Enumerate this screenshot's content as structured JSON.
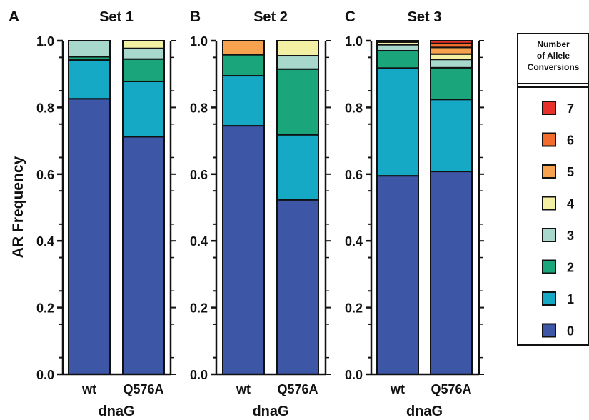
{
  "ylabel": "AR Frequency",
  "chart_data": [
    {
      "type": "bar",
      "stacked": true,
      "panel": "A",
      "title": "Set 1",
      "xlabel": "dnaG",
      "categories": [
        "wt",
        "Q576A"
      ],
      "ylim": [
        0,
        1.0
      ],
      "yticks": [
        "0.0",
        "0.2",
        "0.4",
        "0.6",
        "0.8",
        "1.0"
      ],
      "series": [
        {
          "name": "0",
          "values": [
            0.826,
            0.712
          ]
        },
        {
          "name": "1",
          "values": [
            0.116,
            0.166
          ]
        },
        {
          "name": "2",
          "values": [
            0.01,
            0.067
          ]
        },
        {
          "name": "3",
          "values": [
            0.048,
            0.032
          ]
        },
        {
          "name": "4",
          "values": [
            0.0,
            0.023
          ]
        },
        {
          "name": "5",
          "values": [
            0.0,
            0.0
          ]
        },
        {
          "name": "6",
          "values": [
            0.0,
            0.0
          ]
        },
        {
          "name": "7",
          "values": [
            0.0,
            0.0
          ]
        }
      ]
    },
    {
      "type": "bar",
      "stacked": true,
      "panel": "B",
      "title": "Set 2",
      "xlabel": "dnaG",
      "categories": [
        "wt",
        "Q576A"
      ],
      "ylim": [
        0,
        1.0
      ],
      "yticks": [
        "0.0",
        "0.2",
        "0.4",
        "0.6",
        "0.8",
        "1.0"
      ],
      "series": [
        {
          "name": "0",
          "values": [
            0.745,
            0.523
          ]
        },
        {
          "name": "1",
          "values": [
            0.15,
            0.195
          ]
        },
        {
          "name": "2",
          "values": [
            0.063,
            0.197
          ]
        },
        {
          "name": "3",
          "values": [
            0.0,
            0.04
          ]
        },
        {
          "name": "4",
          "values": [
            0.0,
            0.045
          ]
        },
        {
          "name": "5",
          "values": [
            0.042,
            0.0
          ]
        },
        {
          "name": "6",
          "values": [
            0.0,
            0.0
          ]
        },
        {
          "name": "7",
          "values": [
            0.0,
            0.0
          ]
        }
      ]
    },
    {
      "type": "bar",
      "stacked": true,
      "panel": "C",
      "title": "Set 3",
      "xlabel": "dnaG",
      "categories": [
        "wt",
        "Q576A"
      ],
      "ylim": [
        0,
        1.0
      ],
      "yticks": [
        "0.0",
        "0.2",
        "0.4",
        "0.6",
        "0.8",
        "1.0"
      ],
      "series": [
        {
          "name": "0",
          "values": [
            0.595,
            0.608
          ]
        },
        {
          "name": "1",
          "values": [
            0.323,
            0.216
          ]
        },
        {
          "name": "2",
          "values": [
            0.052,
            0.095
          ]
        },
        {
          "name": "3",
          "values": [
            0.018,
            0.025
          ]
        },
        {
          "name": "4",
          "values": [
            0.008,
            0.016
          ]
        },
        {
          "name": "5",
          "values": [
            0.004,
            0.02
          ]
        },
        {
          "name": "6",
          "values": [
            0.0,
            0.012
          ]
        },
        {
          "name": "7",
          "values": [
            0.0,
            0.008
          ]
        }
      ]
    }
  ],
  "legend": {
    "title": [
      "Number",
      "of Allele",
      "Conversions"
    ],
    "items": [
      {
        "label": "7",
        "color": "#e8312a"
      },
      {
        "label": "6",
        "color": "#f26c2b"
      },
      {
        "label": "5",
        "color": "#f7a24e"
      },
      {
        "label": "4",
        "color": "#f3f0a4"
      },
      {
        "label": "3",
        "color": "#a8d8cc"
      },
      {
        "label": "2",
        "color": "#1ba57a"
      },
      {
        "label": "1",
        "color": "#16a9c6"
      },
      {
        "label": "0",
        "color": "#3d56a6"
      }
    ]
  },
  "colors": {
    "0": "#3d56a6",
    "1": "#16a9c6",
    "2": "#1ba57a",
    "3": "#a8d8cc",
    "4": "#f3f0a4",
    "5": "#f7a24e",
    "6": "#f26c2b",
    "7": "#e8312a"
  }
}
